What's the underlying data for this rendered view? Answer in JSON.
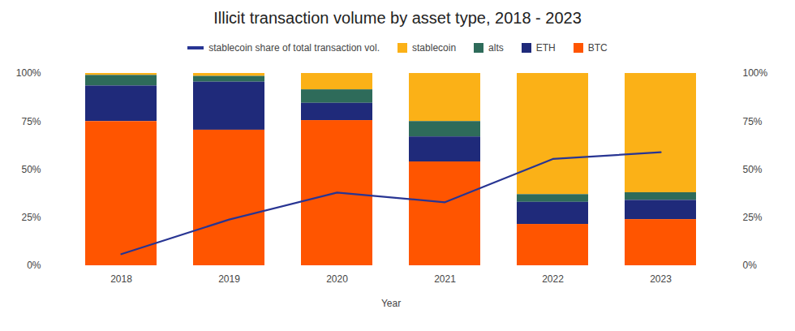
{
  "chart_data": {
    "type": "bar",
    "title": "Illicit transaction volume by asset type, 2018 - 2023",
    "x_label": "Year",
    "categories": [
      "2018",
      "2019",
      "2020",
      "2021",
      "2022",
      "2023"
    ],
    "stacked": true,
    "legend": "top",
    "grid": false,
    "series": [
      {
        "name": "stablecoin share of total transaction vol.",
        "type": "line",
        "axis": "y2",
        "color": "#283593",
        "values": [
          6,
          24,
          38,
          33,
          55.5,
          59
        ]
      },
      {
        "name": "stablecoin",
        "type": "bar",
        "color": "#fbb117",
        "values": [
          1,
          1.5,
          8.5,
          25,
          63,
          62
        ]
      },
      {
        "name": "alts",
        "type": "bar",
        "color": "#2e6b5a",
        "values": [
          5.5,
          3,
          7,
          8,
          4,
          4
        ]
      },
      {
        "name": "ETH",
        "type": "bar",
        "color": "#1f2a7a",
        "values": [
          18.5,
          25,
          9,
          13,
          11.5,
          10
        ]
      },
      {
        "name": "BTC",
        "type": "bar",
        "color": "#ff5500",
        "values": [
          75,
          70.5,
          75.5,
          54,
          21.5,
          24
        ]
      }
    ],
    "ylim": [
      0,
      100
    ],
    "yticks": [
      {
        "value": 0,
        "label": "0%"
      },
      {
        "value": 25,
        "label": "25%"
      },
      {
        "value": 50,
        "label": "50%"
      },
      {
        "value": 75,
        "label": "75%"
      },
      {
        "value": 100,
        "label": "100%"
      }
    ],
    "y2lim": [
      0,
      100
    ],
    "y2ticks": [
      {
        "value": 0,
        "label": "0%"
      },
      {
        "value": 25,
        "label": "25%"
      },
      {
        "value": 50,
        "label": "50%"
      },
      {
        "value": 75,
        "label": "75%"
      },
      {
        "value": 100,
        "label": "100%"
      }
    ]
  }
}
